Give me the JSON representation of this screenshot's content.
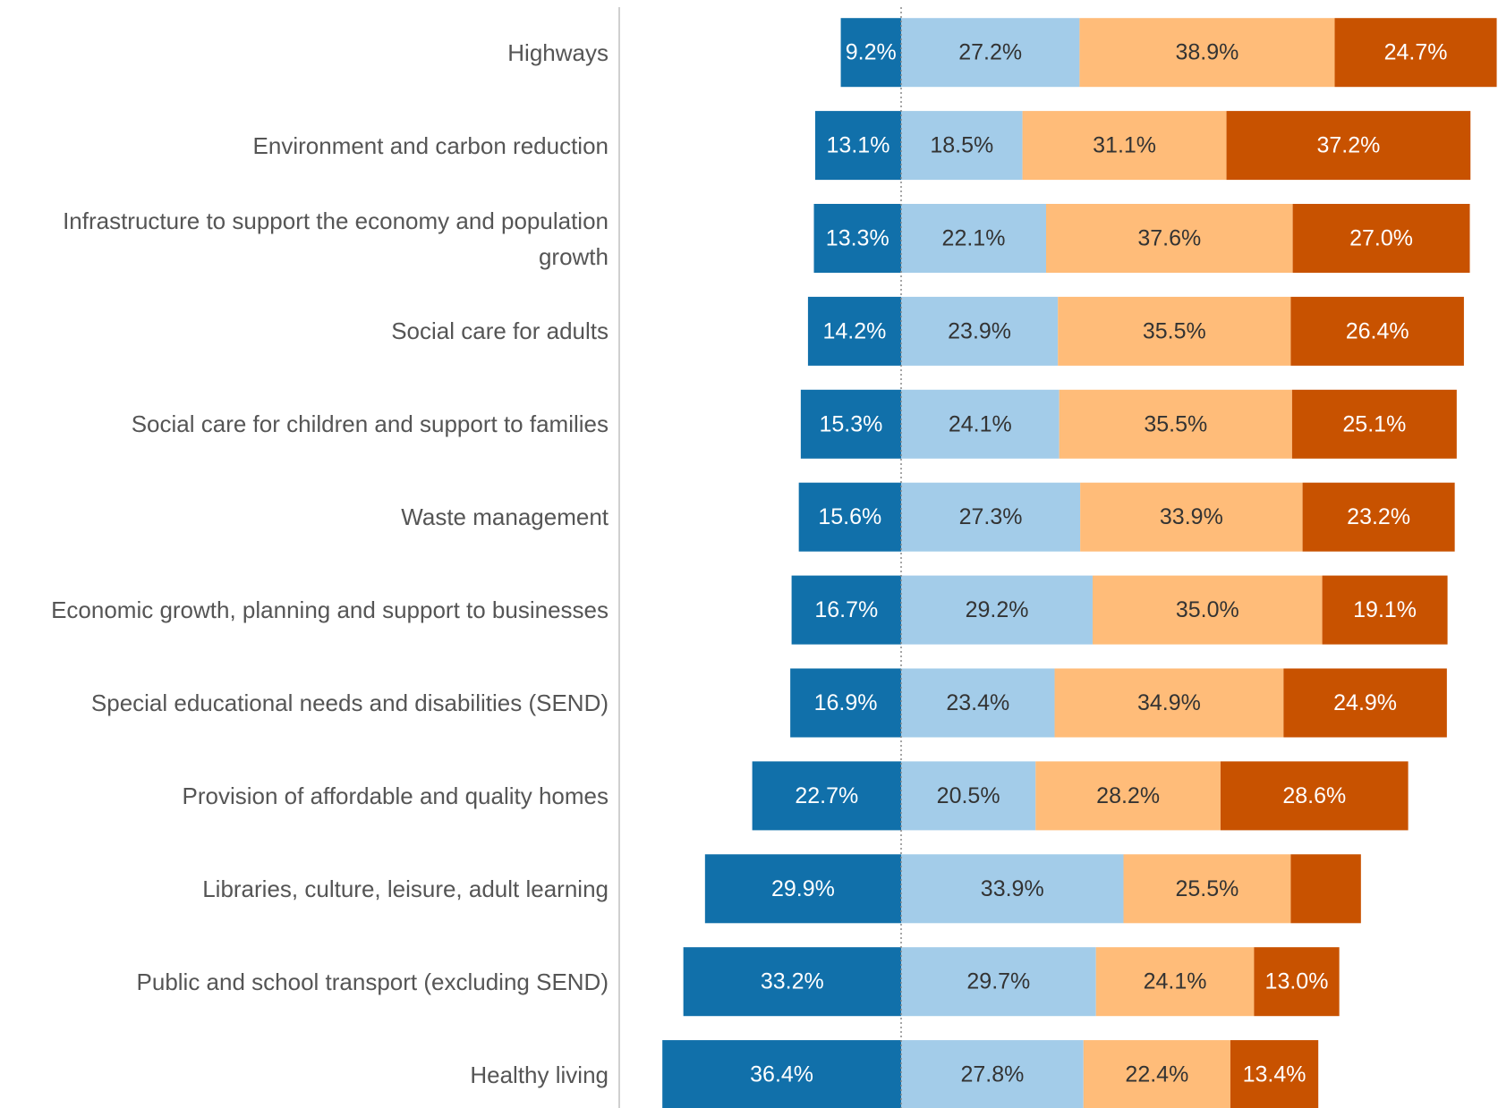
{
  "chart_data": {
    "type": "diverging-bar",
    "categories": [
      "Highways",
      "Environment and carbon reduction",
      "Infrastructure to support the economy and population growth",
      "Social care for adults",
      "Social care for children and support to families",
      "Waste management",
      "Economic growth, planning and support to businesses",
      "Special educational needs and disabilities (SEND)",
      "Provision of affordable and quality homes",
      "Libraries, culture, leisure, adult learning",
      "Public and school transport (excluding SEND)",
      "Healthy living"
    ],
    "series": [
      {
        "color": "#1170aa",
        "side": "left",
        "values": [
          9.2,
          13.1,
          13.3,
          14.2,
          15.3,
          15.6,
          16.7,
          16.9,
          22.7,
          29.9,
          33.2,
          36.4
        ],
        "value_labels": [
          "9.2%",
          "13.1%",
          "13.3%",
          "14.2%",
          "15.3%",
          "15.6%",
          "16.7%",
          "16.9%",
          "22.7%",
          "29.9%",
          "33.2%",
          "36.4%"
        ]
      },
      {
        "color": "#a3cce9",
        "side": "right",
        "values": [
          27.2,
          18.5,
          22.1,
          23.9,
          24.1,
          27.3,
          29.2,
          23.4,
          20.5,
          33.9,
          29.7,
          27.8
        ],
        "value_labels": [
          "27.2%",
          "18.5%",
          "22.1%",
          "23.9%",
          "24.1%",
          "27.3%",
          "29.2%",
          "23.4%",
          "20.5%",
          "33.9%",
          "29.7%",
          "27.8%"
        ]
      },
      {
        "color": "#ffbc79",
        "side": "right",
        "values": [
          38.9,
          31.1,
          37.6,
          35.5,
          35.5,
          33.9,
          35.0,
          34.9,
          28.2,
          25.5,
          24.1,
          22.4
        ],
        "value_labels": [
          "38.9%",
          "31.1%",
          "37.6%",
          "35.5%",
          "35.5%",
          "33.9%",
          "35.0%",
          "34.9%",
          "28.2%",
          "25.5%",
          "24.1%",
          "22.4%"
        ]
      },
      {
        "color": "#c85200",
        "side": "right",
        "values": [
          24.7,
          37.2,
          27.0,
          26.4,
          25.1,
          23.2,
          19.1,
          24.9,
          28.6,
          10.7,
          13.0,
          13.4
        ],
        "value_labels": [
          "24.7%",
          "37.2%",
          "27.0%",
          "26.4%",
          "25.1%",
          "23.2%",
          "19.1%",
          "24.9%",
          "28.6%",
          null,
          "13.0%",
          "13.4%"
        ]
      }
    ]
  }
}
